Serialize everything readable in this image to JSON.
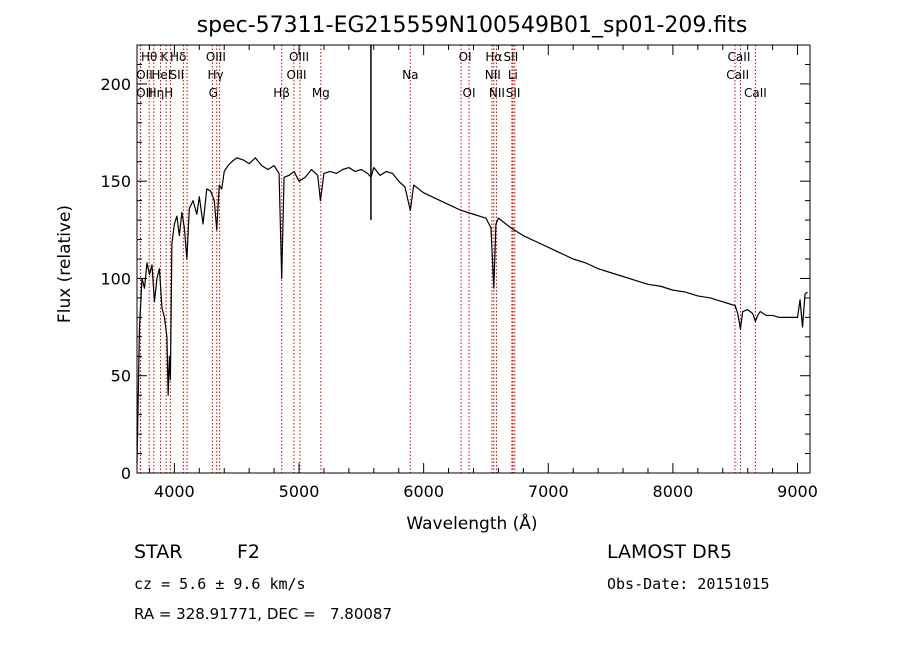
{
  "chart_data": {
    "type": "line",
    "title": "spec-57311-EG215559N100549B01_sp01-209.fits",
    "xlabel": "Wavelength (Å)",
    "ylabel": "Flux (relative)",
    "xlim": [
      3700,
      9100
    ],
    "ylim": [
      0,
      220
    ],
    "xticks": [
      4000,
      5000,
      6000,
      7000,
      8000,
      9000
    ],
    "yticks": [
      0,
      50,
      100,
      150,
      200
    ],
    "grid": false,
    "colors": {
      "spectrum": "#000000",
      "line_markers": "#cc0000"
    },
    "series": [
      {
        "x": [
          3700,
          3720,
          3740,
          3760,
          3780,
          3800,
          3820,
          3840,
          3860,
          3880,
          3900,
          3920,
          3940,
          3950,
          3960,
          3968,
          3980,
          4000,
          4020,
          4040,
          4060,
          4080,
          4100,
          4120,
          4150,
          4180,
          4200,
          4230,
          4260,
          4290,
          4320,
          4340,
          4360,
          4380,
          4400,
          4430,
          4460,
          4500,
          4550,
          4600,
          4650,
          4700,
          4750,
          4800,
          4840,
          4861,
          4880,
          4920,
          4960,
          5000,
          5050,
          5100,
          5150,
          5172,
          5200,
          5250,
          5300,
          5350,
          5400,
          5450,
          5500,
          5550,
          5577,
          5600,
          5650,
          5700,
          5750,
          5800,
          5850,
          5893,
          5920,
          5960,
          6000,
          6100,
          6200,
          6300,
          6400,
          6500,
          6540,
          6563,
          6580,
          6600,
          6700,
          6800,
          6900,
          7000,
          7100,
          7200,
          7300,
          7400,
          7500,
          7600,
          7700,
          7800,
          7900,
          8000,
          8100,
          8200,
          8300,
          8400,
          8450,
          8500,
          8520,
          8542,
          8560,
          8600,
          8640,
          8662,
          8680,
          8700,
          8750,
          8800,
          8850,
          8900,
          8950,
          9000,
          9020,
          9040,
          9060,
          9080
        ],
        "y": [
          5,
          75,
          100,
          95,
          108,
          102,
          107,
          88,
          100,
          105,
          85,
          80,
          70,
          40,
          60,
          48,
          118,
          128,
          132,
          122,
          134,
          126,
          110,
          136,
          140,
          133,
          142,
          128,
          146,
          145,
          140,
          125,
          148,
          146,
          155,
          158,
          160,
          162,
          161,
          159,
          162,
          158,
          156,
          158,
          154,
          100,
          152,
          153,
          155,
          150,
          152,
          156,
          153,
          140,
          154,
          155,
          154,
          156,
          157,
          155,
          156,
          154,
          152,
          157,
          153,
          155,
          154,
          150,
          147,
          135,
          148,
          146,
          144,
          141,
          138,
          135,
          133,
          131,
          126,
          95,
          128,
          131,
          126,
          122,
          119,
          116,
          113,
          110,
          108,
          105,
          103,
          101,
          99,
          97,
          96,
          94,
          93,
          91,
          90,
          88,
          87,
          86,
          82,
          74,
          83,
          84,
          82,
          78,
          81,
          83,
          81,
          81,
          80,
          80,
          80,
          80,
          89,
          75,
          92,
          93
        ]
      }
    ],
    "spike": {
      "x": 5577,
      "top": 220,
      "bottom": 130
    },
    "line_markers": [
      {
        "label": "Hθ",
        "x": 3798,
        "row": 0,
        "label_x": 3798
      },
      {
        "label": "OII",
        "x": 3727,
        "row": 1,
        "label_x": 3760
      },
      {
        "label": "OII",
        "x": 3729,
        "row": 2,
        "label_x": 3760
      },
      {
        "label": "Hη",
        "x": 3835,
        "row": 2,
        "label_x": 3852
      },
      {
        "label": "K",
        "x": 3934,
        "row": 0,
        "label_x": 3919
      },
      {
        "label": "HeI",
        "x": 3889,
        "row": 1,
        "label_x": 3895
      },
      {
        "label": "H",
        "x": 3968,
        "row": 2,
        "label_x": 3955
      },
      {
        "label": "Hδ",
        "x": 4102,
        "row": 0,
        "label_x": 4030
      },
      {
        "label": "SII",
        "x": 4072,
        "row": 1,
        "label_x": 4020
      },
      {
        "label": "OIII",
        "x": 4363,
        "row": 0,
        "label_x": 4333
      },
      {
        "label": "Hγ",
        "x": 4340,
        "row": 1,
        "label_x": 4330
      },
      {
        "label": "G",
        "x": 4305,
        "row": 2,
        "label_x": 4312
      },
      {
        "label": "Hβ",
        "x": 4861,
        "row": 2,
        "label_x": 4860
      },
      {
        "label": "OIII",
        "x": 5007,
        "row": 0,
        "label_x": 5000
      },
      {
        "label": "OIII",
        "x": 4959,
        "row": 1,
        "label_x": 4980
      },
      {
        "label": "Mg",
        "x": 5175,
        "row": 2,
        "label_x": 5175
      },
      {
        "label": "Na",
        "x": 5893,
        "row": 1,
        "label_x": 5893
      },
      {
        "label": "OI",
        "x": 6300,
        "row": 0,
        "label_x": 6333
      },
      {
        "label": "OI",
        "x": 6364,
        "row": 2,
        "label_x": 6364
      },
      {
        "label": "Hα",
        "x": 6563,
        "row": 0,
        "label_x": 6563
      },
      {
        "label": "NII",
        "x": 6548,
        "row": 1,
        "label_x": 6555
      },
      {
        "label": "NII",
        "x": 6584,
        "row": 2,
        "label_x": 6588
      },
      {
        "label": "SII",
        "x": 6717,
        "row": 0,
        "label_x": 6700
      },
      {
        "label": "Li",
        "x": 6708,
        "row": 1,
        "label_x": 6716
      },
      {
        "label": "SII",
        "x": 6731,
        "row": 2,
        "label_x": 6718
      },
      {
        "label": "CaII",
        "x": 8498,
        "row": 0,
        "label_x": 8530
      },
      {
        "label": "CaII",
        "x": 8542,
        "row": 1,
        "label_x": 8520
      },
      {
        "label": "CaII",
        "x": 8662,
        "row": 2,
        "label_x": 8662
      }
    ]
  },
  "info": {
    "object_type": "STAR",
    "subclass": "F2",
    "survey": "LAMOST DR5",
    "cz": "cz = 5.6 ± 9.6 km/s",
    "obs_date": "Obs-Date: 20151015",
    "coords": "RA = 328.91771, DEC =   7.80087"
  }
}
